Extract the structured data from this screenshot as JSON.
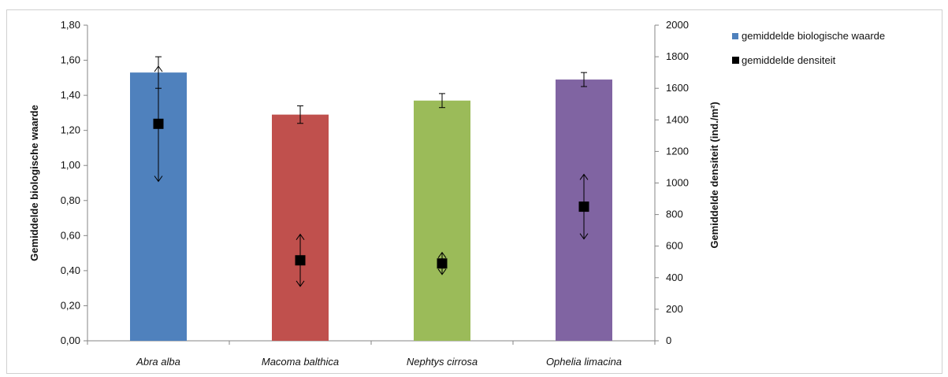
{
  "chart_data": {
    "type": "bar",
    "categories": [
      "Abra alba",
      "Macoma balthica",
      "Nephtys cirrosa",
      "Ophelia limacina"
    ],
    "series": [
      {
        "name": "gemiddelde biologische waarde",
        "type": "bar",
        "axis": "left",
        "values": [
          1.53,
          1.29,
          1.37,
          1.49
        ],
        "error": [
          0.09,
          0.05,
          0.04,
          0.04
        ],
        "colors": [
          "#4F81BD",
          "#C0504D",
          "#9BBB59",
          "#8064A2"
        ]
      },
      {
        "name": "gemiddelde densiteit",
        "type": "scatter",
        "axis": "right",
        "values": [
          1375,
          510,
          490,
          850
        ],
        "error": [
          365,
          165,
          70,
          205
        ],
        "color": "#000000"
      }
    ],
    "y_left": {
      "label": "Gemiddelde biologische waarde",
      "ylim": [
        0,
        1.8
      ],
      "ticks": [
        "0,00",
        "0,20",
        "0,40",
        "0,60",
        "0,80",
        "1,00",
        "1,20",
        "1,40",
        "1,60",
        "1,80"
      ]
    },
    "y_right": {
      "label": "Gemiddelde densiteit (ind./m²)",
      "ylim": [
        0,
        2000
      ],
      "ticks": [
        "0",
        "200",
        "400",
        "600",
        "800",
        "1000",
        "1200",
        "1400",
        "1600",
        "1800",
        "2000"
      ]
    },
    "legend": {
      "placement": "top-right",
      "items": [
        "gemiddelde biologische waarde",
        "gemiddelde densiteit"
      ]
    },
    "grid": false
  }
}
